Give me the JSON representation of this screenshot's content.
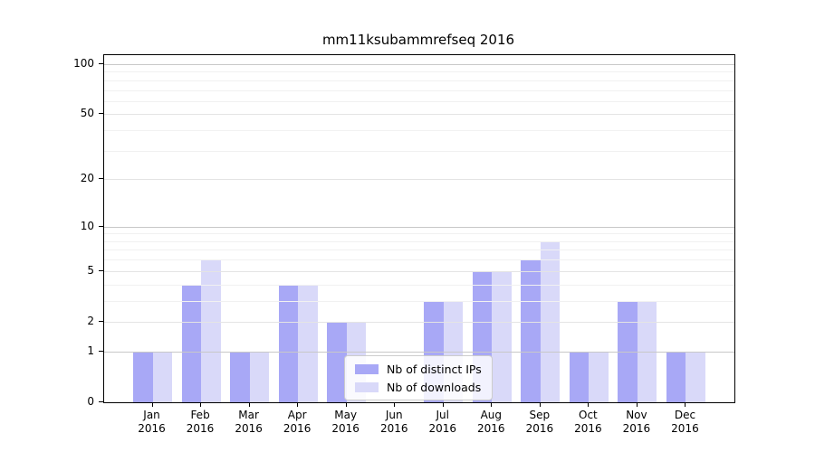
{
  "title": "mm11ksubammrefseq 2016",
  "chart_data": {
    "type": "bar",
    "title": "mm11ksubammrefseq 2016",
    "categories": [
      "Jan",
      "Feb",
      "Mar",
      "Apr",
      "May",
      "Jun",
      "Jul",
      "Aug",
      "Sep",
      "Oct",
      "Nov",
      "Dec"
    ],
    "x_year": "2016",
    "series": [
      {
        "name": "Nb of distinct IPs",
        "color": "#a8a8f6",
        "values": [
          1,
          4,
          1,
          4,
          2,
          0,
          3,
          5,
          6,
          1,
          3,
          1
        ]
      },
      {
        "name": "Nb of downloads",
        "color": "#d9d9f9",
        "values": [
          1,
          6,
          1,
          4,
          2,
          0,
          3,
          5,
          8,
          1,
          3,
          1
        ]
      }
    ],
    "y_scale": "log10(1+x)",
    "ylim": [
      0,
      113
    ],
    "y_ticks_major": [
      100,
      50,
      20,
      10,
      5,
      2,
      1,
      0
    ],
    "y_tick_labels": [
      "100",
      "50",
      "20",
      "10",
      "5",
      "2",
      "1",
      "0"
    ],
    "y_ticks_decade": [
      1,
      10,
      100
    ],
    "y_gridlines_minor": [
      3,
      4,
      6,
      7,
      8,
      9,
      30,
      40,
      60,
      70,
      80,
      90
    ],
    "grid": "on",
    "legend_position": "lower-right-of-center"
  },
  "legend": {
    "items": [
      {
        "label": "Nb of distinct IPs"
      },
      {
        "label": "Nb of downloads"
      }
    ]
  }
}
